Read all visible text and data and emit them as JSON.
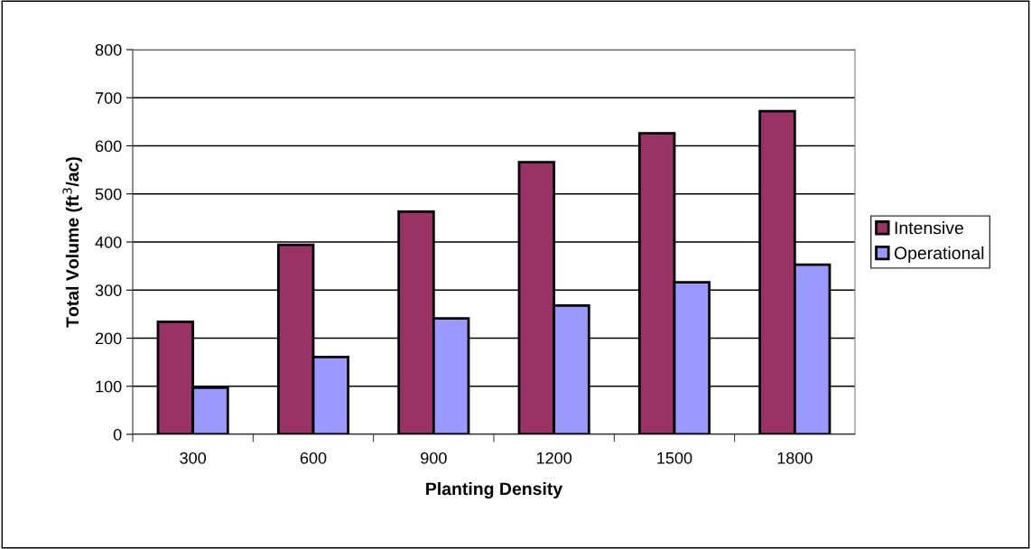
{
  "chart_data": {
    "type": "bar",
    "xlabel": "Planting Density",
    "ylabel": "Total Volume (ft$^{3}$/ac)",
    "categories": [
      "300",
      "600",
      "900",
      "1200",
      "1500",
      "1800"
    ],
    "series": [
      {
        "name": "Intensive",
        "color": "#993366",
        "values": [
          234,
          394,
          463,
          566,
          626,
          672
        ]
      },
      {
        "name": "Operational",
        "color": "#9999ff",
        "values": [
          97,
          161,
          241,
          268,
          316,
          353
        ]
      }
    ],
    "ylim": [
      0,
      800
    ],
    "yticks": [
      0,
      100,
      200,
      300,
      400,
      500,
      600,
      700,
      800
    ],
    "grid": "y",
    "legend": "right"
  }
}
